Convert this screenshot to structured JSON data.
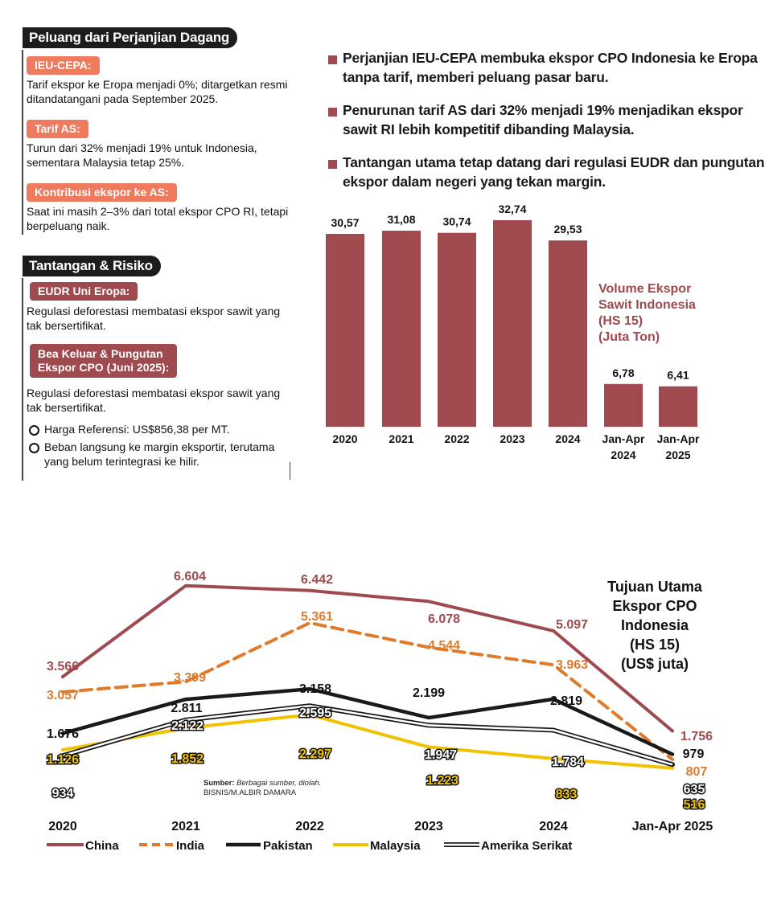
{
  "left_panel": {
    "section1_title": "Peluang dari Perjanjian Dagang",
    "items1": [
      {
        "label": "IEU-CEPA:",
        "text": "Tarif ekspor ke Eropa menjadi 0%; ditargetkan resmi ditandatangani pada September 2025."
      },
      {
        "label": "Tarif AS:",
        "text": "Turun dari 32% menjadi 19% untuk Indonesia, sementara Malaysia tetap 25%."
      },
      {
        "label": "Kontribusi ekspor ke AS:",
        "text": "Saat ini masih 2–3% dari total ekspor CPO RI, tetapi berpeluang naik."
      }
    ],
    "section2_title": "Tantangan & Risiko",
    "items2": [
      {
        "label": "EUDR Uni Eropa:",
        "text": "Regulasi deforestasi membatasi ekspor sawit yang tak bersertifikat."
      },
      {
        "label_line1": "Bea Keluar & Pungutan",
        "label_line2": "Ekspor CPO (Juni 2025):",
        "text": "Regulasi deforestasi membatasi ekspor sawit yang tak bersertifikat."
      }
    ],
    "sub_bullets": [
      "Harga Referensi: US$856,38 per MT.",
      "Beban langsung ke margin eksportir, terutama yang belum terintegrasi ke hilir."
    ]
  },
  "right_bullets": [
    "Perjanjian IEU-CEPA membuka ekspor CPO Indonesia ke Eropa tanpa tarif, memberi peluang pasar baru.",
    "Penurunan tarif AS dari 32% menjadi 19% menjadikan ekspor sawit RI lebih kompetitif dibanding Malaysia.",
    "Tantangan utama tetap datang dari regulasi EUDR dan pungutan ekspor dalam negeri yang tekan margin."
  ],
  "bar_title_lines": [
    "Volume Ekspor",
    "Sawit Indonesia",
    "(HS 15)",
    "(Juta Ton)"
  ],
  "line_title_lines": [
    "Tujuan Utama",
    "Ekspor CPO",
    "Indonesia",
    "(HS 15)",
    "(US$ juta)"
  ],
  "source": {
    "prefix": "Sumber:",
    "text": " Berbagai sumber, diolah.",
    "credit": "BISNIS/M.ALBIR DAMARA"
  },
  "colors": {
    "bar": "#9e4a4f",
    "china": "#9e4a4f",
    "india": "#e07a2b",
    "pakistan": "#1a1a1a",
    "malaysia": "#f2c200",
    "as": "#1a1a1a"
  },
  "chart_data": [
    {
      "type": "bar",
      "categories": [
        "2020",
        "2021",
        "2022",
        "2023",
        "2024",
        "Jan-Apr 2024",
        "Jan-Apr 2025"
      ],
      "values": [
        30.57,
        31.08,
        30.74,
        32.74,
        29.53,
        6.78,
        6.41
      ],
      "value_labels": [
        "30,57",
        "31,08",
        "30,74",
        "32,74",
        "29,53",
        "6,78",
        "6,41"
      ],
      "title": "Volume Ekspor Sawit Indonesia (HS 15) (Juta Ton)",
      "ylim": [
        0,
        35
      ]
    },
    {
      "type": "line",
      "x": [
        "2020",
        "2021",
        "2022",
        "2023",
        "2024",
        "Jan-Apr 2025"
      ],
      "series": [
        {
          "name": "China",
          "values": [
            3566,
            6604,
            6442,
            6078,
            5097,
            1756
          ],
          "labels": [
            "3.566",
            "6.604",
            "6.442",
            "6.078",
            "5.097",
            "1.756"
          ]
        },
        {
          "name": "India",
          "values": [
            3057,
            3399,
            5361,
            4544,
            3963,
            807
          ],
          "labels": [
            "3.057",
            "3.399",
            "5.361",
            "4.544",
            "3.963",
            "807"
          ]
        },
        {
          "name": "Pakistan",
          "values": [
            1676,
            2811,
            3158,
            2199,
            2819,
            979
          ],
          "labels": [
            "1.676",
            "2.811",
            "3.158",
            "2.199",
            "2.819",
            "979"
          ]
        },
        {
          "name": "Malaysia",
          "values": [
            1126,
            1852,
            2297,
            1223,
            833,
            516
          ],
          "labels": [
            "1.126",
            "1.852",
            "2.297",
            "1.223",
            "833",
            "516"
          ]
        },
        {
          "name": "Amerika Serikat",
          "values": [
            934,
            2122,
            2595,
            1947,
            1784,
            635
          ],
          "labels": [
            "934",
            "2.122",
            "2.595",
            "1.947",
            "1.784",
            "635"
          ]
        }
      ],
      "title": "Tujuan Utama Ekspor CPO Indonesia (HS 15) (US$ juta)",
      "legend": "bottom"
    }
  ]
}
